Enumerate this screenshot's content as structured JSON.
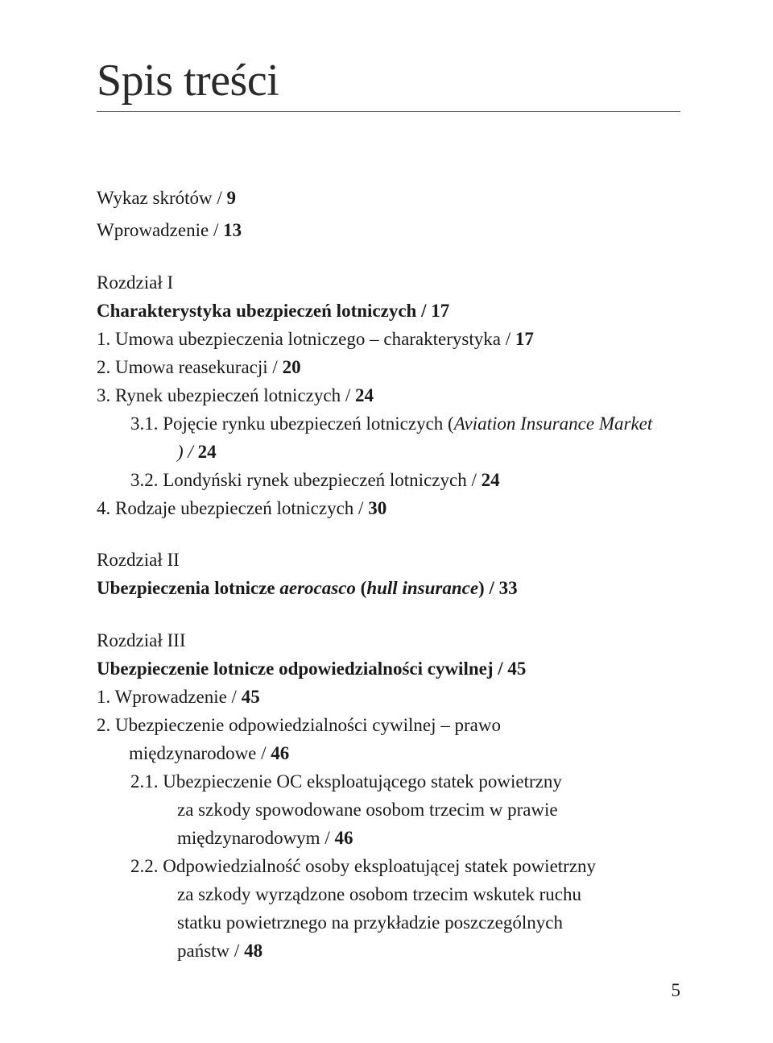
{
  "title": "Spis treści",
  "entries": {
    "e1": "Wykaz skrótów  / ",
    "e1p": "9",
    "e2": "Wprowadzenie  / ",
    "e2p": "13",
    "ch1": "Rozdział I",
    "ch1t": "Charakterystyka ubezpieczeń lotniczych  / ",
    "ch1tp": "17",
    "i1n": "1. ",
    "i1": "Umowa ubezpieczenia lotniczego – charakterystyka  / ",
    "i1p": "17",
    "i2n": "2. ",
    "i2": "Umowa reasekuracji  / ",
    "i2p": "20",
    "i3n": "3. ",
    "i3": "Rynek ubezpieczeń lotniczych  / ",
    "i3p": "24",
    "i31n": "3.1. ",
    "i31a": "Pojęcie rynku ubezpieczeń lotniczych (",
    "i31b": "Aviation Insurance Market",
    "i31c": ")  / ",
    "i31p": "24",
    "i32n": "3.2. ",
    "i32": "Londyński rynek ubezpieczeń lotniczych  / ",
    "i32p": "24",
    "i4n": "4. ",
    "i4": "Rodzaje ubezpieczeń lotniczych  / ",
    "i4p": "30",
    "ch2": "Rozdział II",
    "ch2ta": "Ubezpieczenia lotnicze ",
    "ch2tb": "aerocasco ",
    "ch2tc": "(",
    "ch2td": "hull insurance",
    "ch2te": ")  / ",
    "ch2tp": "33",
    "ch3": "Rozdział III",
    "ch3t": "Ubezpieczenie lotnicze odpowiedzialności cywilnej  / ",
    "ch3tp": "45",
    "j1n": "1. ",
    "j1": "Wprowadzenie  / ",
    "j1p": "45",
    "j2n": "2. ",
    "j2a": "Ubezpieczenie odpowiedzialności cywilnej – prawo ",
    "j2b": "międzynarodowe  / ",
    "j2p": "46",
    "j21n": "2.1. ",
    "j21a": "Ubezpieczenie OC eksploatującego statek powietrzny ",
    "j21b": "za szkody spowodowane osobom trzecim w prawie ",
    "j21c": "międzynarodowym  / ",
    "j21p": "46",
    "j22n": "2.2. ",
    "j22a": "Odpowiedzialność osoby eksploatującej statek powietrzny ",
    "j22b": "za szkody wyrządzone osobom trzecim wskutek ruchu ",
    "j22c": "statku powietrznego na przykładzie poszczególnych ",
    "j22d": "państw  / ",
    "j22p": "48"
  },
  "pageNumber": "5"
}
